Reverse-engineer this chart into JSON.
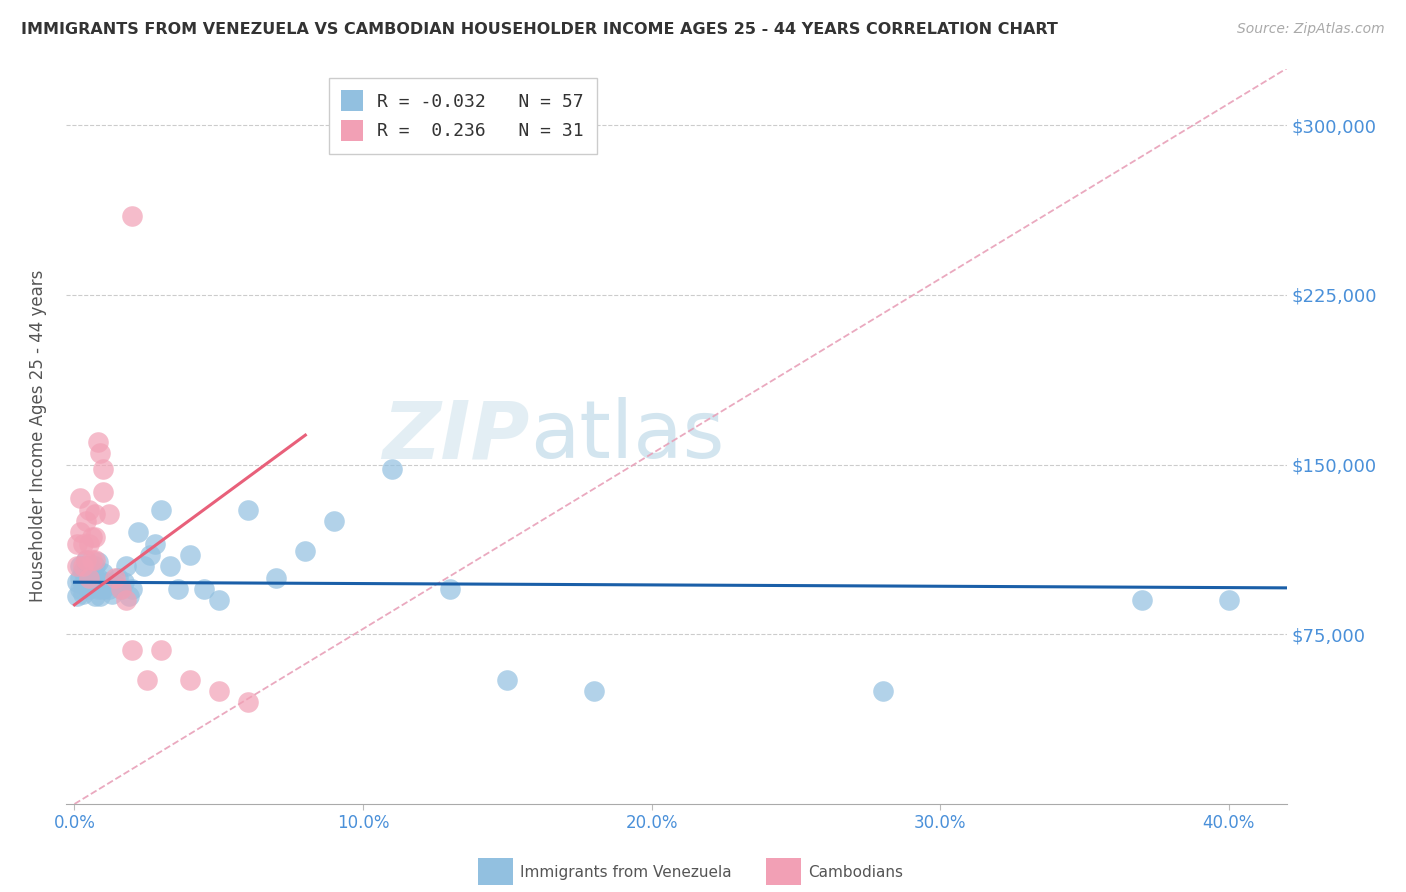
{
  "title": "IMMIGRANTS FROM VENEZUELA VS CAMBODIAN HOUSEHOLDER INCOME AGES 25 - 44 YEARS CORRELATION CHART",
  "source": "Source: ZipAtlas.com",
  "ylabel": "Householder Income Ages 25 - 44 years",
  "xlabel_ticks": [
    "0.0%",
    "10.0%",
    "20.0%",
    "30.0%",
    "40.0%"
  ],
  "xlabel_values": [
    0.0,
    0.1,
    0.2,
    0.3,
    0.4
  ],
  "ytick_labels": [
    "$75,000",
    "$150,000",
    "$225,000",
    "$300,000"
  ],
  "ytick_values": [
    75000,
    150000,
    225000,
    300000
  ],
  "ymin": 0,
  "ymax": 325000,
  "xmin": -0.003,
  "xmax": 0.42,
  "r_venezuela": -0.032,
  "n_venezuela": 57,
  "r_cambodian": 0.236,
  "n_cambodian": 31,
  "color_venezuela": "#92c0e0",
  "color_cambodian": "#f2a0b5",
  "trendline_venezuela_color": "#1a5fa8",
  "trendline_cambodian_color": "#e8607a",
  "trendline_diagonal_color": "#e8a0b8",
  "background_color": "#ffffff",
  "ven_trendline_x": [
    0.0,
    0.42
  ],
  "ven_trendline_y": [
    98000,
    95500
  ],
  "cam_trendline_x": [
    0.0,
    0.08
  ],
  "cam_trendline_y": [
    88000,
    163000
  ],
  "venezuela_x": [
    0.001,
    0.001,
    0.002,
    0.002,
    0.002,
    0.003,
    0.003,
    0.003,
    0.004,
    0.004,
    0.004,
    0.005,
    0.005,
    0.005,
    0.006,
    0.006,
    0.007,
    0.007,
    0.007,
    0.008,
    0.008,
    0.008,
    0.009,
    0.009,
    0.01,
    0.01,
    0.011,
    0.012,
    0.013,
    0.014,
    0.015,
    0.016,
    0.017,
    0.018,
    0.019,
    0.02,
    0.022,
    0.024,
    0.026,
    0.028,
    0.03,
    0.033,
    0.036,
    0.04,
    0.045,
    0.05,
    0.06,
    0.07,
    0.08,
    0.09,
    0.11,
    0.13,
    0.15,
    0.18,
    0.28,
    0.37,
    0.4
  ],
  "venezuela_y": [
    92000,
    98000,
    95000,
    100000,
    105000,
    93000,
    97000,
    103000,
    98000,
    102000,
    108000,
    95000,
    100000,
    105000,
    97000,
    103000,
    92000,
    98000,
    105000,
    95000,
    100000,
    107000,
    92000,
    98000,
    95000,
    102000,
    98000,
    95000,
    93000,
    97000,
    100000,
    95000,
    98000,
    105000,
    92000,
    95000,
    120000,
    105000,
    110000,
    115000,
    130000,
    105000,
    95000,
    110000,
    95000,
    90000,
    130000,
    100000,
    112000,
    125000,
    148000,
    95000,
    55000,
    50000,
    50000,
    90000,
    90000
  ],
  "cambodian_x": [
    0.001,
    0.001,
    0.002,
    0.002,
    0.003,
    0.003,
    0.004,
    0.004,
    0.005,
    0.005,
    0.005,
    0.006,
    0.006,
    0.007,
    0.007,
    0.007,
    0.008,
    0.009,
    0.01,
    0.01,
    0.012,
    0.014,
    0.016,
    0.018,
    0.02,
    0.025,
    0.03,
    0.04,
    0.05,
    0.06,
    0.02
  ],
  "cambodian_y": [
    105000,
    115000,
    120000,
    135000,
    105000,
    115000,
    108000,
    125000,
    130000,
    100000,
    115000,
    108000,
    118000,
    108000,
    118000,
    128000,
    160000,
    155000,
    138000,
    148000,
    128000,
    100000,
    95000,
    90000,
    68000,
    55000,
    68000,
    55000,
    50000,
    45000,
    260000
  ]
}
